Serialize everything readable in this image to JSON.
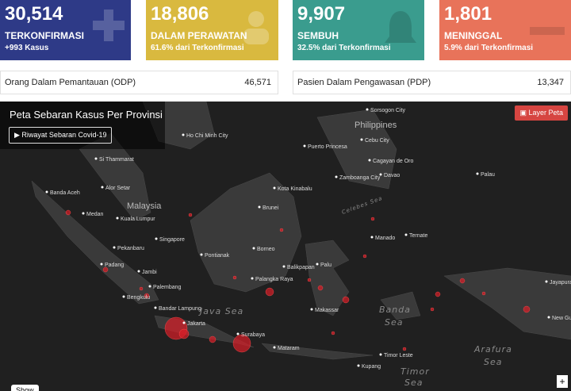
{
  "cards": [
    {
      "value": "30,514",
      "label": "TERKONFIRMASI",
      "sub": "+993 Kasus"
    },
    {
      "value": "18,806",
      "label": "DALAM PERAWATAN",
      "sub": "61.6% dari Terkonfirmasi"
    },
    {
      "value": "9,907",
      "label": "SEMBUH",
      "sub": "32.5% dari Terkonfirmasi"
    },
    {
      "value": "1,801",
      "label": "MENINGGAL",
      "sub": "5.9% dari Terkonfirmasi"
    }
  ],
  "stats": [
    {
      "label": "Orang Dalam Pemantauan (ODP)",
      "value": "46,571"
    },
    {
      "label": "Pasien Dalam Pengawasan (PDP)",
      "value": "13,347"
    }
  ],
  "map": {
    "title": "Peta Sebaran Kasus Per Provinsi",
    "history_button": "Riwayat Sebaran Covid-19",
    "layer_button": "Layer Peta",
    "zoom_in": "+",
    "show_button": "Show",
    "places": [
      "Sorsogon City",
      "Philippines",
      "Ho Chi Minh City",
      "Puerto Princesa",
      "Cebu City",
      "Cagayan de Oro",
      "Si Thammarat",
      "Zamboanga City",
      "Davao",
      "Palau",
      "Alor Setar",
      "Banda Aceh",
      "Kota Kinabalu",
      "Malaysia",
      "Brunei",
      "Medan",
      "Kuala Lumpur",
      "Manado",
      "Ternate",
      "Singapore",
      "Pekanbaru",
      "Borneo",
      "Pontianak",
      "Padang",
      "Balikpapan",
      "Palu",
      "Jambi",
      "Palangka Raya",
      "Jayapura",
      "Palembang",
      "Bengkulu",
      "Makassar",
      "Bandar Lampung",
      "New Guinea",
      "Jakarta",
      "Surabaya",
      "Mataram",
      "Timor Leste",
      "Kupang"
    ],
    "seas": [
      "Celebes Sea",
      "Java Sea",
      "Banda",
      "Sea",
      "Arafura",
      "Sea",
      "Timor",
      "Sea"
    ]
  }
}
